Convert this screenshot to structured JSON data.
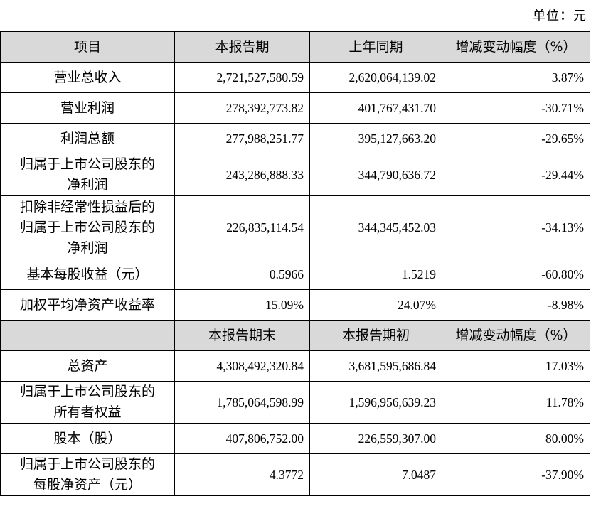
{
  "unit_label": "单位：元",
  "header1": [
    "项目",
    "本报告期",
    "上年同期",
    "增减变动幅度（%）"
  ],
  "rows1": [
    {
      "label": "营业总收入",
      "current": "2,721,527,580.59",
      "previous": "2,620,064,139.02",
      "change": "3.87%"
    },
    {
      "label": "营业利润",
      "current": "278,392,773.82",
      "previous": "401,767,431.70",
      "change": "-30.71%"
    },
    {
      "label": "利润总额",
      "current": "277,988,251.77",
      "previous": "395,127,663.20",
      "change": "-29.65%"
    },
    {
      "label_lines": [
        "归属于上市公司股东的",
        "净利润"
      ],
      "current": "243,286,888.33",
      "previous": "344,790,636.72",
      "change": "-29.44%"
    },
    {
      "label_lines": [
        "扣除非经常性损益后的",
        "归属于上市公司股东的",
        "净利润"
      ],
      "current": "226,835,114.54",
      "previous": "344,345,452.03",
      "change": "-34.13%"
    },
    {
      "label": "基本每股收益（元）",
      "current": "0.5966",
      "previous": "1.5219",
      "change": "-60.80%"
    },
    {
      "label": "加权平均净资产收益率",
      "current": "15.09%",
      "previous": "24.07%",
      "change": "-8.98%"
    }
  ],
  "header2": [
    "",
    "本报告期末",
    "本报告期初",
    "增减变动幅度（%）"
  ],
  "rows2": [
    {
      "label": "总资产",
      "current": "4,308,492,320.84",
      "previous": "3,681,595,686.84",
      "change": "17.03%"
    },
    {
      "label_lines": [
        "归属于上市公司股东的",
        "所有者权益"
      ],
      "current": "1,785,064,598.99",
      "previous": "1,596,956,639.23",
      "change": "11.78%"
    },
    {
      "label": "股本（股）",
      "current": "407,806,752.00",
      "previous": "226,559,307.00",
      "change": "80.00%"
    },
    {
      "label_lines": [
        "归属于上市公司股东的",
        "每股净资产（元）"
      ],
      "current": "4.3772",
      "previous": "7.0487",
      "change": "-37.90%"
    }
  ]
}
